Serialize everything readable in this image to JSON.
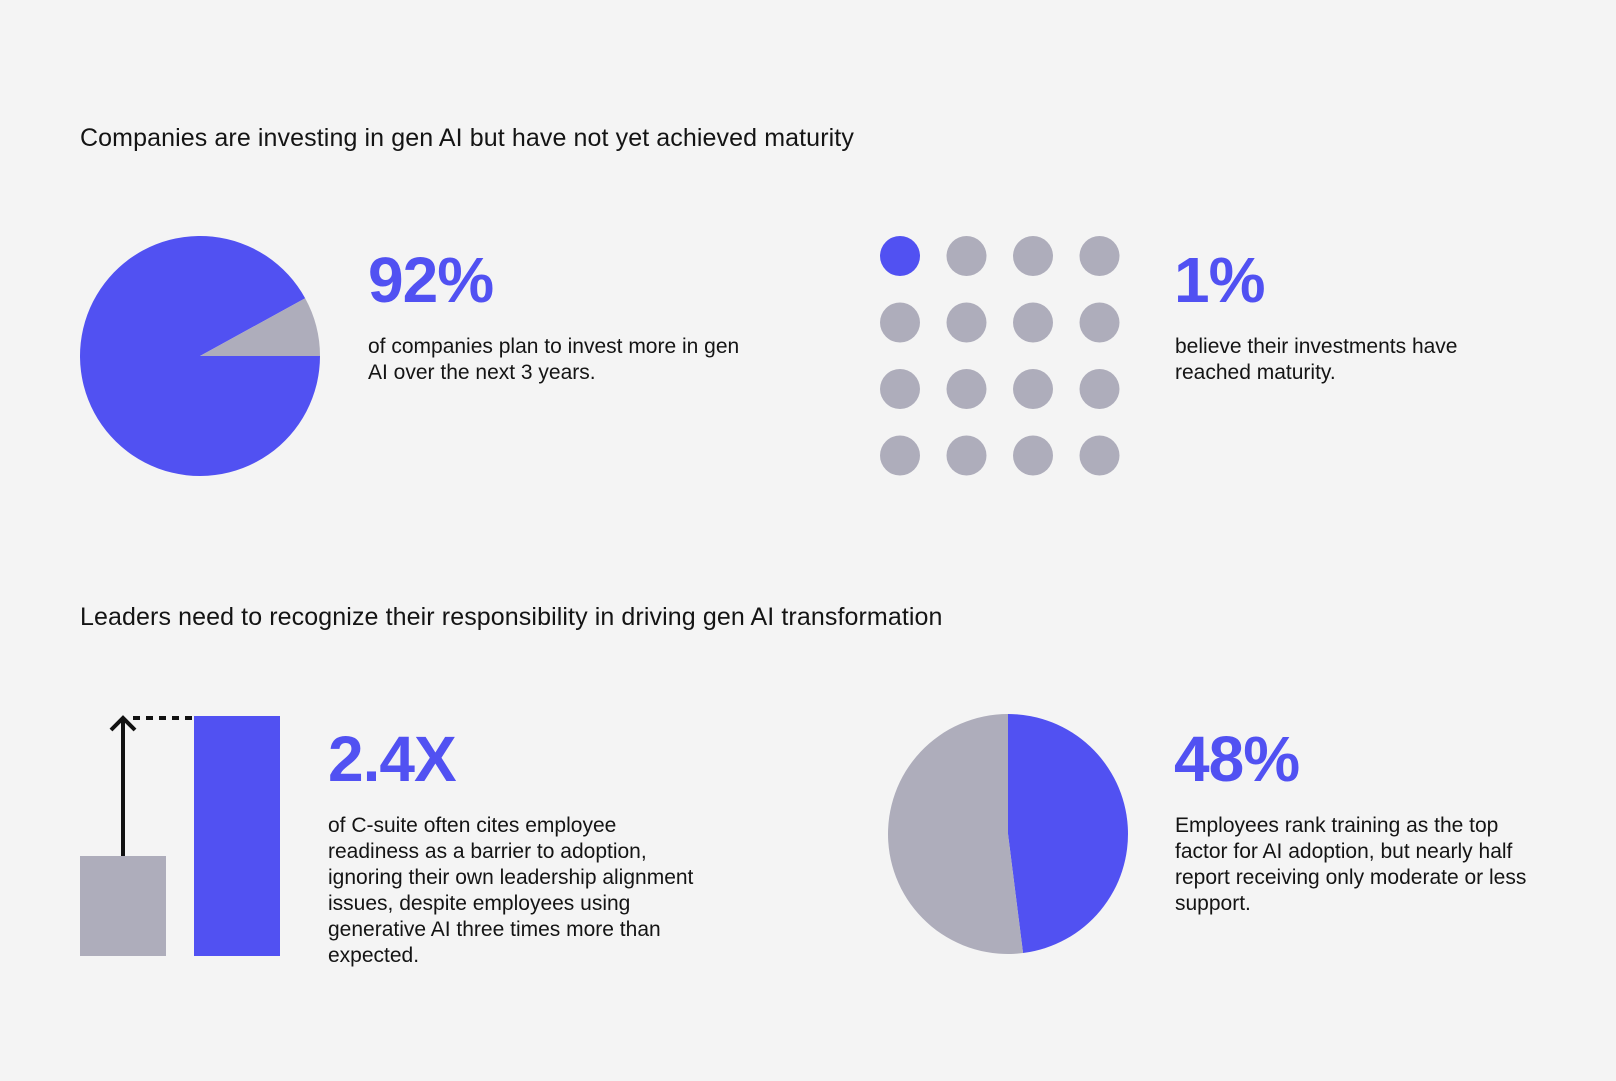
{
  "colors": {
    "accent": "#5151f2",
    "muted": "#aeadbb",
    "background": "#f4f4f4",
    "text": "#141414"
  },
  "sections": [
    {
      "title": "Companies are investing in gen AI but have not yet achieved maturity"
    },
    {
      "title": "Leaders need to recognize their responsibility in driving gen AI transformation"
    }
  ],
  "cards": [
    {
      "stat": "92%",
      "description": "of companies plan to invest more in gen AI over the next 3 years."
    },
    {
      "stat": "1%",
      "description": "believe their investments have reached maturity."
    },
    {
      "stat": "2.4X",
      "description": "of C-suite often cites employee readiness as a barrier to adoption, ignoring their own leadership alignment issues, despite employees using generative AI three times more than expected."
    },
    {
      "stat": "48%",
      "description": "Employees rank training as the top factor for AI adoption, but nearly half report receiving only moderate or less support."
    }
  ],
  "chart_data": [
    {
      "type": "pie",
      "values": [
        92,
        8
      ],
      "colors": [
        "#5151f2",
        "#aeadbb"
      ]
    },
    {
      "type": "dot-grid",
      "rows": 4,
      "columns": 4,
      "highlighted": 1,
      "total": 16,
      "colors": [
        "#5151f2",
        "#aeadbb"
      ]
    },
    {
      "type": "bar",
      "values": [
        1,
        2.4
      ],
      "colors": [
        "#aeadbb",
        "#5151f2"
      ],
      "ylim": [
        0,
        2.4
      ]
    },
    {
      "type": "pie",
      "values": [
        48,
        52
      ],
      "colors": [
        "#5151f2",
        "#aeadbb"
      ]
    }
  ]
}
